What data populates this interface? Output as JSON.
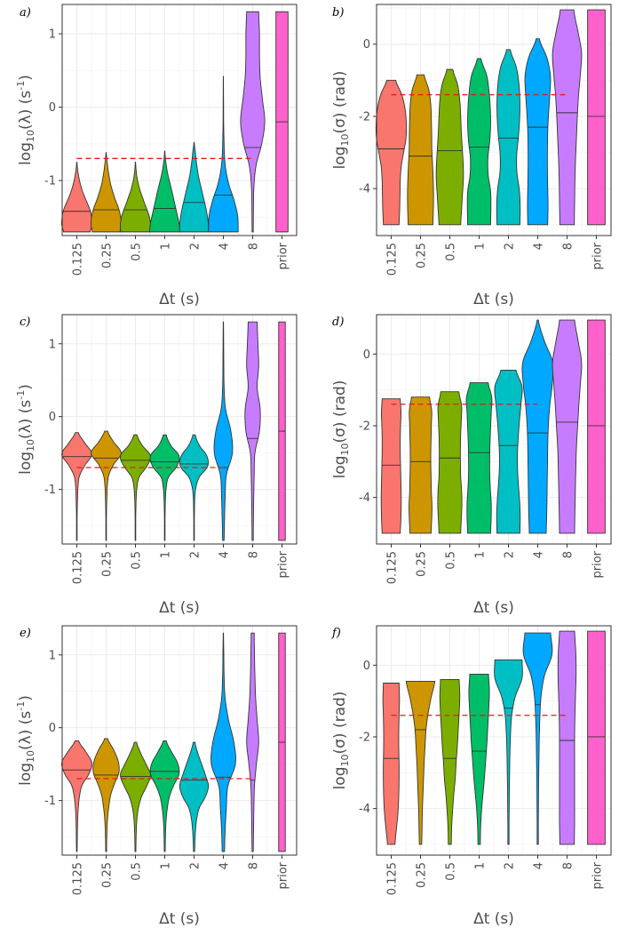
{
  "chart_data": [
    {
      "panel_label": "a)",
      "type": "violin",
      "ylabel": "log10(λ) (s^-1)",
      "ylabel_parts": {
        "pre": "log",
        "sub": "10",
        "mid": "(λ) (s",
        "sup": "-1",
        "post": ")"
      },
      "xlabel": "Δt (s)",
      "categories": [
        "0.125",
        "0.25",
        "0.5",
        "1",
        "2",
        "4",
        "8",
        "prior"
      ],
      "ylim": [
        -1.75,
        1.4
      ],
      "yticks": [
        -1,
        0,
        1
      ],
      "yticks_labels": [
        "-1",
        "0",
        "1"
      ],
      "reference_line": {
        "y": -0.7,
        "x_from": "0.125",
        "x_to": "8"
      },
      "violins": [
        {
          "min": -1.7,
          "max": -0.75,
          "median": -1.42,
          "shape": [
            0.88,
            1.0,
            0.98,
            0.9,
            0.72,
            0.52,
            0.35,
            0.22,
            0.12,
            0.05,
            0.01
          ]
        },
        {
          "min": -1.7,
          "max": -0.62,
          "median": -1.4,
          "shape": [
            0.92,
            1.0,
            0.95,
            0.82,
            0.62,
            0.45,
            0.3,
            0.2,
            0.12,
            0.06,
            0.01
          ]
        },
        {
          "min": -1.7,
          "max": -0.75,
          "median": -1.4,
          "shape": [
            0.98,
            1.0,
            0.94,
            0.8,
            0.62,
            0.46,
            0.3,
            0.18,
            0.09,
            0.04,
            0.01
          ]
        },
        {
          "min": -1.7,
          "max": -0.6,
          "median": -1.38,
          "shape": [
            1.0,
            0.95,
            0.84,
            0.72,
            0.6,
            0.48,
            0.35,
            0.22,
            0.12,
            0.05,
            0.01
          ]
        },
        {
          "min": -1.7,
          "max": -0.48,
          "median": -1.3,
          "shape": [
            0.95,
            0.94,
            0.86,
            0.74,
            0.6,
            0.46,
            0.32,
            0.22,
            0.14,
            0.08,
            0.01
          ]
        },
        {
          "min": -1.7,
          "max": 0.42,
          "median": -1.2,
          "shape": [
            0.98,
            0.95,
            0.72,
            0.38,
            0.16,
            0.07,
            0.04,
            0.02,
            0.015,
            0.01,
            0.005
          ]
        },
        {
          "min": -1.7,
          "max": 1.3,
          "median": -0.55,
          "shape": [
            0.04,
            0.05,
            0.08,
            0.22,
            0.6,
            0.8,
            0.65,
            0.5,
            0.45,
            0.45,
            0.4
          ]
        },
        {
          "min": -1.7,
          "max": 1.3,
          "median": -0.2,
          "shape": [
            0.4,
            0.4,
            0.4,
            0.4,
            0.4,
            0.4,
            0.4,
            0.4,
            0.4,
            0.4,
            0.4
          ]
        }
      ]
    },
    {
      "panel_label": "b)",
      "type": "violin",
      "ylabel": "log10(σ) (rad)",
      "ylabel_parts": {
        "pre": "log",
        "sub": "10",
        "mid": "(σ) (rad)",
        "sup": "",
        "post": ""
      },
      "xlabel": "Δt (s)",
      "categories": [
        "0.125",
        "0.25",
        "0.5",
        "1",
        "2",
        "4",
        "8",
        "prior"
      ],
      "ylim": [
        -5.3,
        1.1
      ],
      "yticks": [
        -4,
        -2,
        0
      ],
      "yticks_labels": [
        "-4",
        "-2",
        "0"
      ],
      "reference_line": {
        "y": -1.4,
        "x_from": "0.125",
        "x_to": "8"
      },
      "violins": [
        {
          "min": -5.0,
          "max": -1.0,
          "median": -2.9,
          "shape": [
            0.52,
            0.56,
            0.58,
            0.6,
            0.66,
            0.82,
            0.98,
            1.0,
            0.92,
            0.7,
            0.3
          ]
        },
        {
          "min": -5.0,
          "max": -0.85,
          "median": -3.1,
          "shape": [
            0.82,
            0.85,
            0.86,
            0.84,
            0.8,
            0.75,
            0.74,
            0.72,
            0.68,
            0.55,
            0.24
          ]
        },
        {
          "min": -5.0,
          "max": -0.7,
          "median": -2.95,
          "shape": [
            0.72,
            0.78,
            0.84,
            0.9,
            0.88,
            0.82,
            0.76,
            0.72,
            0.66,
            0.52,
            0.2
          ]
        },
        {
          "min": -5.0,
          "max": -0.4,
          "median": -2.85,
          "shape": [
            0.76,
            0.78,
            0.76,
            0.6,
            0.58,
            0.7,
            0.76,
            0.74,
            0.66,
            0.5,
            0.12
          ]
        },
        {
          "min": -5.0,
          "max": -0.15,
          "median": -2.6,
          "shape": [
            0.76,
            0.78,
            0.72,
            0.56,
            0.55,
            0.66,
            0.74,
            0.76,
            0.7,
            0.52,
            0.12
          ]
        },
        {
          "min": -5.0,
          "max": 0.15,
          "median": -2.3,
          "shape": [
            0.66,
            0.68,
            0.66,
            0.64,
            0.64,
            0.66,
            0.72,
            0.8,
            0.84,
            0.6,
            0.1
          ]
        },
        {
          "min": -5.0,
          "max": 0.95,
          "median": -1.9,
          "shape": [
            0.48,
            0.5,
            0.52,
            0.56,
            0.62,
            0.68,
            0.76,
            0.88,
            0.96,
            0.72,
            0.45
          ]
        },
        {
          "min": -5.0,
          "max": 0.95,
          "median": -2.0,
          "shape": [
            0.58,
            0.58,
            0.58,
            0.58,
            0.58,
            0.58,
            0.58,
            0.58,
            0.58,
            0.58,
            0.58
          ]
        }
      ]
    },
    {
      "panel_label": "c)",
      "type": "violin",
      "ylabel": "log10(λ) (s^-1)",
      "ylabel_parts": {
        "pre": "log",
        "sub": "10",
        "mid": "(λ) (s",
        "sup": "-1",
        "post": ")"
      },
      "xlabel": "Δt (s)",
      "categories": [
        "0.125",
        "0.25",
        "0.5",
        "1",
        "2",
        "4",
        "8",
        "prior"
      ],
      "ylim": [
        -1.75,
        1.4
      ],
      "yticks": [
        -1,
        0,
        1
      ],
      "yticks_labels": [
        "-1",
        "0",
        "1"
      ],
      "reference_line": {
        "y": -0.7,
        "x_from": "0.125",
        "x_to": "4"
      },
      "violins": [
        {
          "min": -1.7,
          "max": -0.22,
          "median": -0.55,
          "shape": [
            0.02,
            0.02,
            0.02,
            0.03,
            0.05,
            0.08,
            0.18,
            0.55,
            1.0,
            0.55,
            0.1
          ]
        },
        {
          "min": -1.7,
          "max": -0.2,
          "median": -0.57,
          "shape": [
            0.02,
            0.02,
            0.02,
            0.03,
            0.05,
            0.08,
            0.18,
            0.52,
            1.0,
            0.5,
            0.1
          ]
        },
        {
          "min": -1.7,
          "max": -0.25,
          "median": -0.6,
          "shape": [
            0.02,
            0.02,
            0.02,
            0.03,
            0.05,
            0.1,
            0.25,
            0.75,
            1.0,
            0.45,
            0.1
          ]
        },
        {
          "min": -1.7,
          "max": -0.25,
          "median": -0.62,
          "shape": [
            0.02,
            0.02,
            0.02,
            0.03,
            0.05,
            0.1,
            0.25,
            0.8,
            0.95,
            0.4,
            0.1
          ]
        },
        {
          "min": -1.7,
          "max": -0.25,
          "median": -0.65,
          "shape": [
            0.02,
            0.02,
            0.02,
            0.03,
            0.05,
            0.12,
            0.35,
            0.9,
            0.85,
            0.35,
            0.08
          ]
        },
        {
          "min": -1.7,
          "max": 1.3,
          "median": -0.7,
          "shape": [
            0.05,
            0.08,
            0.12,
            0.2,
            0.6,
            0.5,
            0.15,
            0.05,
            0.03,
            0.02,
            0.01
          ]
        },
        {
          "min": -1.7,
          "max": 1.3,
          "median": -0.3,
          "shape": [
            0.04,
            0.05,
            0.07,
            0.1,
            0.15,
            0.45,
            0.5,
            0.3,
            0.4,
            0.35,
            0.3
          ]
        },
        {
          "min": -1.7,
          "max": 1.3,
          "median": -0.2,
          "shape": [
            0.22,
            0.22,
            0.22,
            0.22,
            0.22,
            0.22,
            0.22,
            0.22,
            0.22,
            0.22,
            0.22
          ]
        }
      ]
    },
    {
      "panel_label": "d)",
      "type": "violin",
      "ylabel": "log10(σ) (rad)",
      "ylabel_parts": {
        "pre": "log",
        "sub": "10",
        "mid": "(σ) (rad)",
        "sup": "",
        "post": ""
      },
      "xlabel": "Δt (s)",
      "categories": [
        "0.125",
        "0.25",
        "0.5",
        "1",
        "2",
        "4",
        "8",
        "prior"
      ],
      "ylim": [
        -5.3,
        1.1
      ],
      "yticks": [
        -4,
        -2,
        0
      ],
      "yticks_labels": [
        "-4",
        "-2",
        "0"
      ],
      "reference_line": {
        "y": -1.4,
        "x_from": "0.125",
        "x_to": "4"
      },
      "violins": [
        {
          "min": -5.0,
          "max": -1.25,
          "median": -3.1,
          "shape": [
            0.6,
            0.64,
            0.66,
            0.66,
            0.64,
            0.62,
            0.6,
            0.6,
            0.62,
            0.65,
            0.6
          ]
        },
        {
          "min": -5.0,
          "max": -1.2,
          "median": -3.0,
          "shape": [
            0.7,
            0.74,
            0.76,
            0.72,
            0.7,
            0.68,
            0.68,
            0.7,
            0.72,
            0.74,
            0.6
          ]
        },
        {
          "min": -5.0,
          "max": -1.05,
          "median": -2.9,
          "shape": [
            0.72,
            0.76,
            0.8,
            0.78,
            0.72,
            0.7,
            0.7,
            0.72,
            0.76,
            0.78,
            0.6
          ]
        },
        {
          "min": -5.0,
          "max": -0.8,
          "median": -2.75,
          "shape": [
            0.76,
            0.8,
            0.8,
            0.74,
            0.7,
            0.7,
            0.72,
            0.76,
            0.8,
            0.84,
            0.6
          ]
        },
        {
          "min": -5.0,
          "max": -0.45,
          "median": -2.55,
          "shape": [
            0.76,
            0.78,
            0.74,
            0.66,
            0.6,
            0.6,
            0.66,
            0.74,
            0.84,
            0.9,
            0.5
          ]
        },
        {
          "min": -5.0,
          "max": 0.95,
          "median": -2.2,
          "shape": [
            0.56,
            0.6,
            0.62,
            0.64,
            0.66,
            0.7,
            0.8,
            0.96,
            1.0,
            0.45,
            0.04
          ]
        },
        {
          "min": -5.0,
          "max": 0.95,
          "median": -1.9,
          "shape": [
            0.5,
            0.52,
            0.55,
            0.58,
            0.62,
            0.7,
            0.78,
            0.88,
            0.96,
            0.74,
            0.5
          ]
        },
        {
          "min": -5.0,
          "max": 0.95,
          "median": -2.0,
          "shape": [
            0.58,
            0.58,
            0.58,
            0.58,
            0.58,
            0.58,
            0.58,
            0.58,
            0.58,
            0.58,
            0.58
          ]
        }
      ]
    },
    {
      "panel_label": "e)",
      "type": "violin",
      "ylabel": "log10(λ) (s^-1)",
      "ylabel_parts": {
        "pre": "log",
        "sub": "10",
        "mid": "(λ) (s",
        "sup": "-1",
        "post": ")"
      },
      "xlabel": "Δt (s)",
      "categories": [
        "0.125",
        "0.25",
        "0.5",
        "1",
        "2",
        "4",
        "8",
        "prior"
      ],
      "ylim": [
        -1.75,
        1.4
      ],
      "yticks": [
        -1,
        0,
        1
      ],
      "yticks_labels": [
        "-1",
        "0",
        "1"
      ],
      "reference_line": {
        "y": -0.7,
        "x_from": "0.125",
        "x_to": "8"
      },
      "violins": [
        {
          "min": -1.7,
          "max": -0.18,
          "median": -0.58,
          "shape": [
            0.02,
            0.03,
            0.04,
            0.06,
            0.1,
            0.18,
            0.35,
            0.8,
            1.0,
            0.6,
            0.12
          ]
        },
        {
          "min": -1.7,
          "max": -0.15,
          "median": -0.65,
          "shape": [
            0.03,
            0.04,
            0.06,
            0.1,
            0.18,
            0.3,
            0.55,
            0.85,
            0.8,
            0.5,
            0.1
          ]
        },
        {
          "min": -1.7,
          "max": -0.2,
          "median": -0.67,
          "shape": [
            0.03,
            0.04,
            0.06,
            0.1,
            0.2,
            0.4,
            0.75,
            1.0,
            0.7,
            0.35,
            0.08
          ]
        },
        {
          "min": -1.7,
          "max": -0.18,
          "median": -0.6,
          "shape": [
            0.03,
            0.04,
            0.06,
            0.1,
            0.18,
            0.32,
            0.6,
            0.95,
            0.85,
            0.45,
            0.1
          ]
        },
        {
          "min": -1.7,
          "max": -0.2,
          "median": -0.72,
          "shape": [
            0.04,
            0.06,
            0.1,
            0.18,
            0.35,
            0.75,
            0.95,
            0.75,
            0.5,
            0.25,
            0.06
          ]
        },
        {
          "min": -1.7,
          "max": 1.3,
          "median": -0.68,
          "shape": [
            0.08,
            0.12,
            0.2,
            0.3,
            0.8,
            0.7,
            0.35,
            0.12,
            0.05,
            0.03,
            0.01
          ]
        },
        {
          "min": -1.7,
          "max": 1.3,
          "median": -0.72,
          "shape": [
            0.04,
            0.06,
            0.08,
            0.12,
            0.25,
            0.4,
            0.3,
            0.2,
            0.15,
            0.12,
            0.1
          ]
        },
        {
          "min": -1.7,
          "max": 1.3,
          "median": -0.2,
          "shape": [
            0.22,
            0.22,
            0.22,
            0.22,
            0.22,
            0.22,
            0.22,
            0.22,
            0.22,
            0.22,
            0.22
          ]
        }
      ]
    },
    {
      "panel_label": "f)",
      "type": "violin",
      "ylabel": "log10(σ) (rad)",
      "ylabel_parts": {
        "pre": "log",
        "sub": "10",
        "mid": "(σ) (rad)",
        "sup": "",
        "post": ""
      },
      "xlabel": "Δt (s)",
      "categories": [
        "0.125",
        "0.25",
        "0.5",
        "1",
        "2",
        "4",
        "8",
        "prior"
      ],
      "ylim": [
        -5.3,
        1.1
      ],
      "yticks": [
        -4,
        -2,
        0
      ],
      "yticks_labels": [
        "-4",
        "-2",
        "0"
      ],
      "reference_line": {
        "y": -1.4,
        "x_from": "0.125",
        "x_to": "8"
      },
      "violins": [
        {
          "min": -5.0,
          "max": -0.5,
          "median": -2.6,
          "shape": [
            0.25,
            0.35,
            0.45,
            0.5,
            0.52,
            0.52,
            0.5,
            0.5,
            0.52,
            0.55,
            0.52
          ]
        },
        {
          "min": -5.0,
          "max": -0.45,
          "median": -1.8,
          "shape": [
            0.08,
            0.1,
            0.12,
            0.16,
            0.2,
            0.24,
            0.3,
            0.36,
            0.5,
            0.7,
            0.95
          ]
        },
        {
          "min": -5.0,
          "max": -0.4,
          "median": -2.6,
          "shape": [
            0.1,
            0.12,
            0.18,
            0.26,
            0.36,
            0.42,
            0.5,
            0.56,
            0.62,
            0.66,
            0.62
          ]
        },
        {
          "min": -5.0,
          "max": -0.25,
          "median": -2.4,
          "shape": [
            0.08,
            0.1,
            0.16,
            0.26,
            0.36,
            0.44,
            0.52,
            0.58,
            0.64,
            0.68,
            0.62
          ]
        },
        {
          "min": -5.0,
          "max": 0.15,
          "median": -1.2,
          "shape": [
            0.04,
            0.04,
            0.05,
            0.06,
            0.08,
            0.1,
            0.14,
            0.22,
            0.45,
            0.9,
            0.9
          ]
        },
        {
          "min": -5.0,
          "max": 0.9,
          "median": -1.1,
          "shape": [
            0.04,
            0.04,
            0.05,
            0.06,
            0.08,
            0.1,
            0.14,
            0.22,
            0.45,
            0.95,
            0.85
          ]
        },
        {
          "min": -5.0,
          "max": 0.95,
          "median": -2.1,
          "shape": [
            0.48,
            0.5,
            0.5,
            0.5,
            0.5,
            0.5,
            0.52,
            0.56,
            0.6,
            0.58,
            0.5
          ]
        },
        {
          "min": -5.0,
          "max": 0.95,
          "median": -2.0,
          "shape": [
            0.58,
            0.58,
            0.58,
            0.58,
            0.58,
            0.58,
            0.58,
            0.58,
            0.58,
            0.58,
            0.58
          ]
        }
      ]
    }
  ],
  "palette": [
    "#f8766d",
    "#cd9600",
    "#7cae00",
    "#00be67",
    "#00bfc4",
    "#00a9ff",
    "#c77cff",
    "#ff61cc"
  ]
}
